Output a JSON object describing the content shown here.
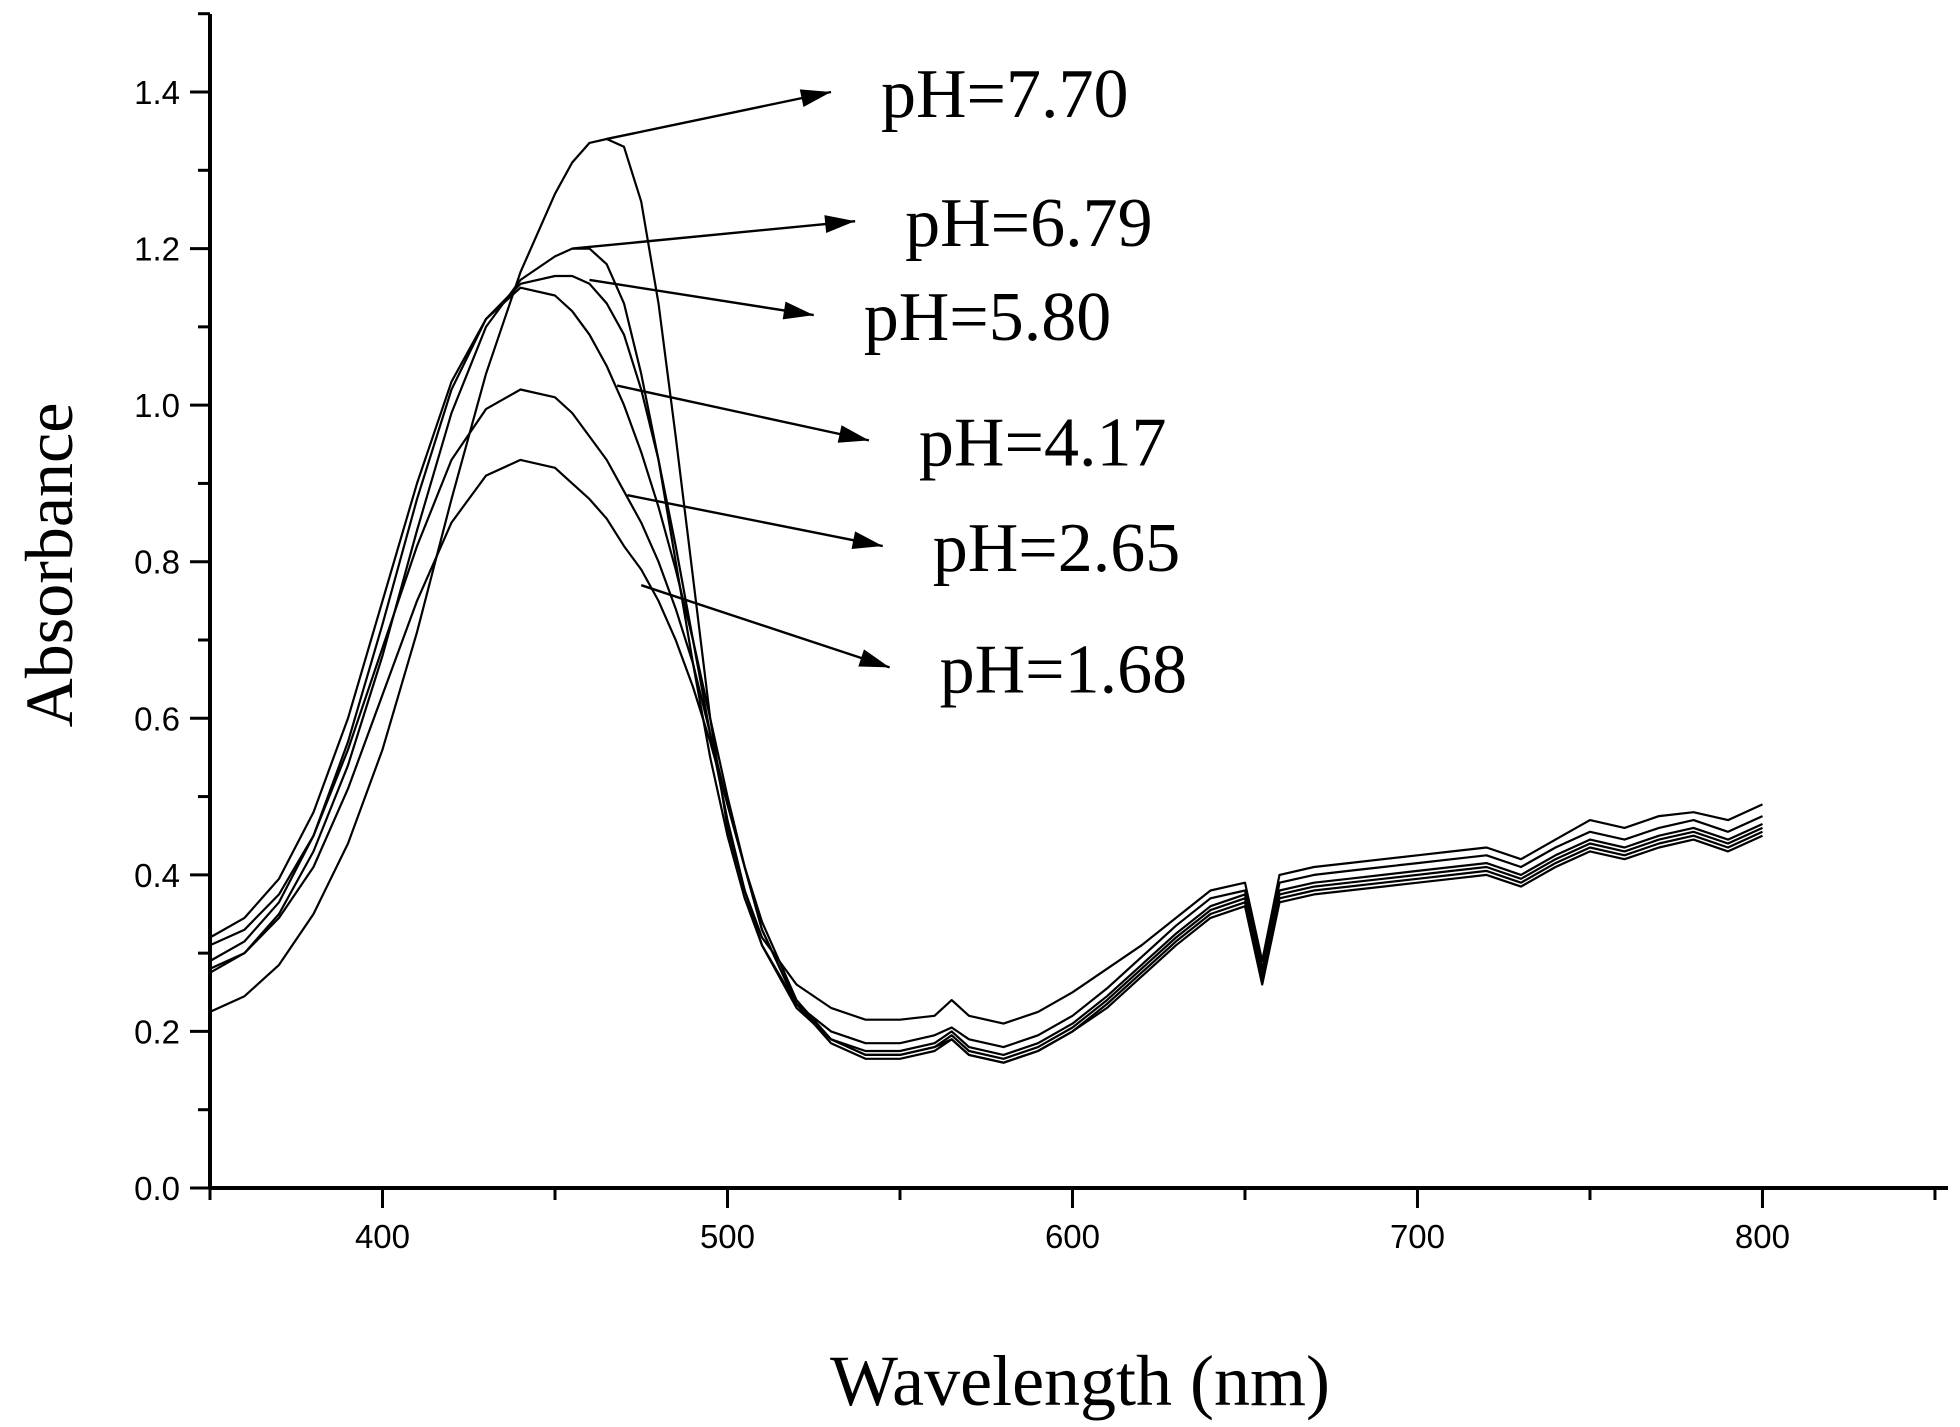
{
  "chart_data": {
    "type": "line",
    "xlabel": "Wavelength (nm)",
    "ylabel": "Absorbance",
    "xlim": [
      350,
      850
    ],
    "ylim": [
      0.0,
      1.5
    ],
    "x_ticks": [
      400,
      500,
      600,
      700,
      800
    ],
    "y_ticks": [
      0.0,
      0.2,
      0.4,
      0.6,
      0.8,
      1.0,
      1.2,
      1.4
    ],
    "x_tick_labels": [
      "400",
      "500",
      "600",
      "700",
      "800"
    ],
    "y_tick_labels": [
      "0.0",
      "0.2",
      "0.4",
      "0.6",
      "0.8",
      "1.0",
      "1.2",
      "1.4"
    ],
    "grid": false,
    "series": [
      {
        "name": "pH=7.70",
        "x": [
          350,
          360,
          370,
          380,
          390,
          400,
          410,
          420,
          430,
          440,
          450,
          455,
          460,
          465,
          470,
          475,
          480,
          485,
          490,
          495,
          500,
          505,
          510,
          520,
          530,
          540,
          550,
          560,
          565,
          570,
          580,
          590,
          600,
          610,
          620,
          630,
          640,
          650,
          655,
          660,
          670,
          680,
          690,
          700,
          710,
          720,
          730,
          740,
          750,
          760,
          770,
          780,
          790,
          800
        ],
        "y": [
          0.225,
          0.245,
          0.285,
          0.35,
          0.44,
          0.56,
          0.71,
          0.88,
          1.04,
          1.17,
          1.27,
          1.31,
          1.335,
          1.34,
          1.33,
          1.26,
          1.13,
          0.96,
          0.78,
          0.6,
          0.46,
          0.38,
          0.32,
          0.26,
          0.23,
          0.215,
          0.215,
          0.22,
          0.24,
          0.22,
          0.21,
          0.225,
          0.25,
          0.28,
          0.31,
          0.345,
          0.38,
          0.39,
          0.29,
          0.4,
          0.41,
          0.415,
          0.42,
          0.425,
          0.43,
          0.435,
          0.42,
          0.445,
          0.47,
          0.46,
          0.475,
          0.48,
          0.47,
          0.49
        ]
      },
      {
        "name": "pH=6.79",
        "x": [
          350,
          360,
          370,
          380,
          390,
          400,
          410,
          420,
          430,
          440,
          450,
          455,
          460,
          465,
          470,
          475,
          480,
          485,
          490,
          495,
          500,
          505,
          510,
          520,
          530,
          540,
          550,
          560,
          565,
          570,
          580,
          590,
          600,
          610,
          620,
          630,
          640,
          650,
          655,
          660,
          670,
          680,
          690,
          700,
          710,
          720,
          730,
          740,
          750,
          760,
          770,
          780,
          790,
          800
        ],
        "y": [
          0.275,
          0.3,
          0.35,
          0.43,
          0.54,
          0.68,
          0.84,
          0.99,
          1.1,
          1.16,
          1.19,
          1.2,
          1.2,
          1.18,
          1.13,
          1.04,
          0.93,
          0.8,
          0.67,
          0.55,
          0.45,
          0.37,
          0.31,
          0.235,
          0.2,
          0.185,
          0.185,
          0.195,
          0.205,
          0.19,
          0.18,
          0.195,
          0.22,
          0.255,
          0.295,
          0.335,
          0.37,
          0.38,
          0.28,
          0.39,
          0.4,
          0.405,
          0.41,
          0.415,
          0.42,
          0.425,
          0.41,
          0.435,
          0.455,
          0.445,
          0.46,
          0.47,
          0.455,
          0.475
        ]
      },
      {
        "name": "pH=5.80",
        "x": [
          350,
          360,
          370,
          380,
          390,
          400,
          410,
          420,
          430,
          440,
          450,
          455,
          460,
          465,
          470,
          475,
          480,
          485,
          490,
          495,
          500,
          505,
          510,
          520,
          530,
          540,
          550,
          560,
          565,
          570,
          580,
          590,
          600,
          610,
          620,
          630,
          640,
          650,
          655,
          660,
          670,
          680,
          690,
          700,
          710,
          720,
          730,
          740,
          750,
          760,
          770,
          780,
          790,
          800
        ],
        "y": [
          0.29,
          0.315,
          0.365,
          0.45,
          0.57,
          0.72,
          0.88,
          1.02,
          1.11,
          1.155,
          1.165,
          1.165,
          1.155,
          1.13,
          1.09,
          1.02,
          0.93,
          0.82,
          0.7,
          0.58,
          0.47,
          0.38,
          0.31,
          0.23,
          0.19,
          0.175,
          0.175,
          0.185,
          0.2,
          0.18,
          0.17,
          0.185,
          0.21,
          0.245,
          0.285,
          0.325,
          0.36,
          0.375,
          0.275,
          0.38,
          0.39,
          0.395,
          0.4,
          0.405,
          0.41,
          0.415,
          0.4,
          0.425,
          0.445,
          0.435,
          0.45,
          0.46,
          0.445,
          0.465
        ]
      },
      {
        "name": "pH=4.17",
        "x": [
          350,
          360,
          370,
          380,
          390,
          400,
          410,
          420,
          430,
          440,
          450,
          455,
          460,
          465,
          470,
          475,
          480,
          485,
          490,
          495,
          500,
          505,
          510,
          520,
          530,
          540,
          550,
          560,
          565,
          570,
          580,
          590,
          600,
          610,
          620,
          630,
          640,
          650,
          655,
          660,
          670,
          680,
          690,
          700,
          710,
          720,
          730,
          740,
          750,
          760,
          770,
          780,
          790,
          800
        ],
        "y": [
          0.32,
          0.345,
          0.395,
          0.48,
          0.6,
          0.75,
          0.9,
          1.03,
          1.11,
          1.15,
          1.14,
          1.12,
          1.09,
          1.05,
          1.0,
          0.94,
          0.87,
          0.79,
          0.7,
          0.6,
          0.5,
          0.41,
          0.33,
          0.235,
          0.19,
          0.17,
          0.17,
          0.18,
          0.195,
          0.175,
          0.165,
          0.18,
          0.205,
          0.24,
          0.28,
          0.32,
          0.355,
          0.37,
          0.27,
          0.375,
          0.385,
          0.39,
          0.395,
          0.4,
          0.405,
          0.41,
          0.395,
          0.42,
          0.44,
          0.43,
          0.445,
          0.455,
          0.44,
          0.46
        ]
      },
      {
        "name": "pH=2.65",
        "x": [
          350,
          360,
          370,
          380,
          390,
          400,
          410,
          420,
          430,
          440,
          450,
          455,
          460,
          465,
          470,
          475,
          480,
          485,
          490,
          495,
          500,
          505,
          510,
          520,
          530,
          540,
          550,
          560,
          565,
          570,
          580,
          590,
          600,
          610,
          620,
          630,
          640,
          650,
          655,
          660,
          670,
          680,
          690,
          700,
          710,
          720,
          730,
          740,
          750,
          760,
          770,
          780,
          790,
          800
        ],
        "y": [
          0.31,
          0.33,
          0.375,
          0.45,
          0.56,
          0.69,
          0.82,
          0.93,
          0.995,
          1.02,
          1.01,
          0.99,
          0.96,
          0.93,
          0.89,
          0.85,
          0.8,
          0.74,
          0.67,
          0.58,
          0.49,
          0.41,
          0.33,
          0.235,
          0.185,
          0.165,
          0.165,
          0.175,
          0.19,
          0.17,
          0.16,
          0.175,
          0.2,
          0.235,
          0.275,
          0.315,
          0.35,
          0.365,
          0.265,
          0.37,
          0.38,
          0.385,
          0.39,
          0.395,
          0.4,
          0.405,
          0.39,
          0.415,
          0.435,
          0.425,
          0.44,
          0.45,
          0.435,
          0.455
        ]
      },
      {
        "name": "pH=1.68",
        "x": [
          350,
          360,
          370,
          380,
          390,
          400,
          410,
          420,
          430,
          440,
          450,
          455,
          460,
          465,
          470,
          475,
          480,
          485,
          490,
          495,
          500,
          505,
          510,
          520,
          530,
          540,
          550,
          560,
          565,
          570,
          580,
          590,
          600,
          610,
          620,
          630,
          640,
          650,
          655,
          660,
          670,
          680,
          690,
          700,
          710,
          720,
          730,
          740,
          750,
          760,
          770,
          780,
          790,
          800
        ],
        "y": [
          0.28,
          0.3,
          0.345,
          0.41,
          0.51,
          0.63,
          0.75,
          0.85,
          0.91,
          0.93,
          0.92,
          0.9,
          0.88,
          0.855,
          0.82,
          0.79,
          0.75,
          0.7,
          0.64,
          0.57,
          0.49,
          0.41,
          0.34,
          0.24,
          0.19,
          0.17,
          0.17,
          0.18,
          0.19,
          0.17,
          0.16,
          0.175,
          0.2,
          0.23,
          0.27,
          0.31,
          0.345,
          0.36,
          0.26,
          0.365,
          0.375,
          0.38,
          0.385,
          0.39,
          0.395,
          0.4,
          0.385,
          0.41,
          0.43,
          0.42,
          0.435,
          0.445,
          0.43,
          0.45
        ]
      }
    ],
    "annotations": [
      {
        "text": "pH=7.70",
        "from": [
          465,
          1.34
        ],
        "to": [
          530,
          1.4
        ]
      },
      {
        "text": "pH=6.79",
        "from": [
          455,
          1.2
        ],
        "to": [
          537,
          1.235
        ]
      },
      {
        "text": "pH=5.80",
        "from": [
          460,
          1.16
        ],
        "to": [
          525,
          1.115
        ]
      },
      {
        "text": "pH=4.17",
        "from": [
          468,
          1.025
        ],
        "to": [
          541,
          0.955
        ]
      },
      {
        "text": "pH=2.65",
        "from": [
          471,
          0.885
        ],
        "to": [
          545,
          0.82
        ]
      },
      {
        "text": "pH=1.68",
        "from": [
          475,
          0.77
        ],
        "to": [
          547,
          0.665
        ]
      }
    ]
  }
}
